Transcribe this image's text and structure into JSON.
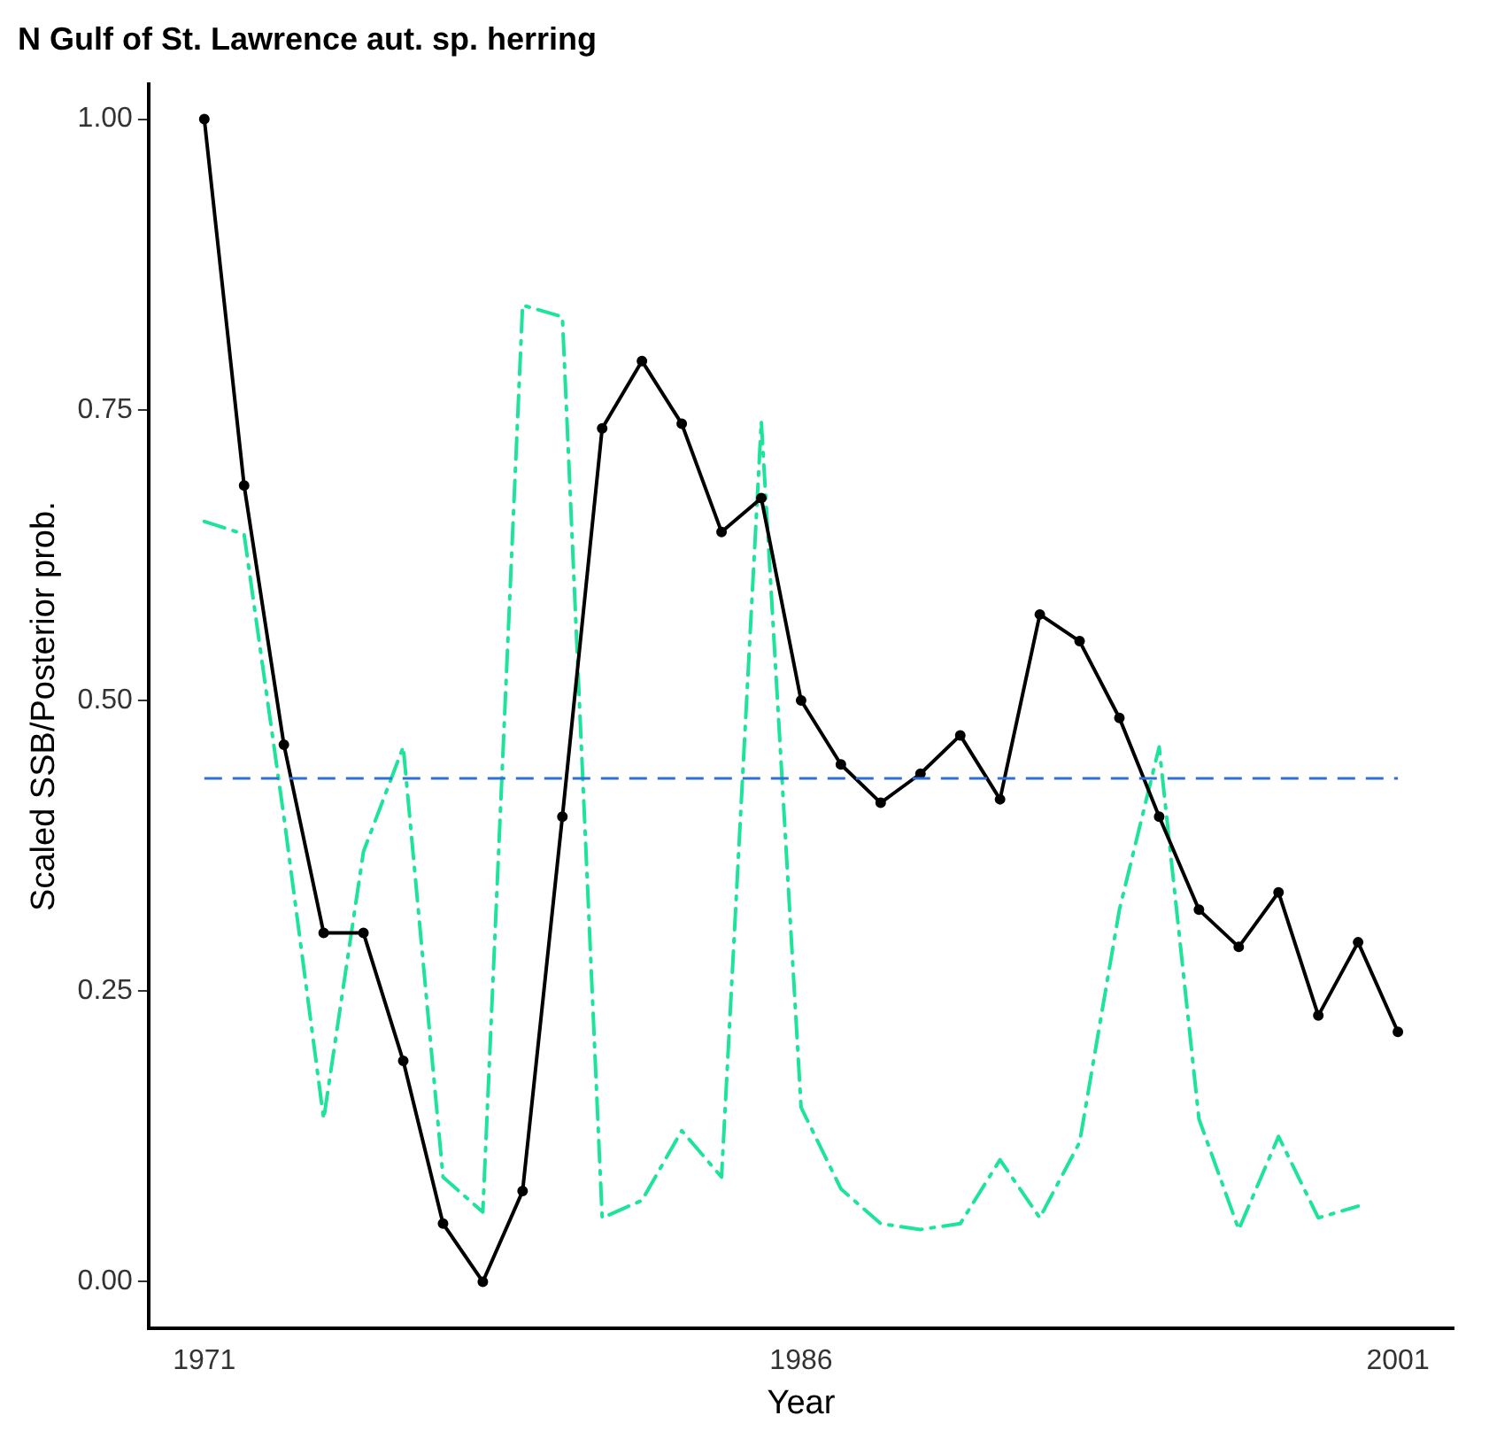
{
  "chart_data": {
    "type": "line",
    "title": "N Gulf of St. Lawrence aut. sp. herring",
    "xlabel": "Year",
    "ylabel": "Scaled SSB/Posterior prob.",
    "xlim": [
      1969.6,
      2002.4
    ],
    "xticks": [
      1971,
      1986,
      2001
    ],
    "ylim": [
      -0.04,
      1.03
    ],
    "yticks": [
      {
        "value": 0,
        "label": "0.00"
      },
      {
        "value": 0.25,
        "label": "0.25"
      },
      {
        "value": 0.5,
        "label": "0.50"
      },
      {
        "value": 0.75,
        "label": "0.75"
      },
      {
        "value": 1,
        "label": "1.00"
      }
    ],
    "grid": false,
    "legend": false,
    "series": [
      {
        "color": "#000000",
        "marker": "circle",
        "line_style": "solid",
        "x": [
          1971,
          1972,
          1973,
          1974,
          1975,
          1976,
          1977,
          1978,
          1979,
          1980,
          1981,
          1982,
          1983,
          1984,
          1985,
          1986,
          1987,
          1988,
          1989,
          1990,
          1991,
          1992,
          1993,
          1994,
          1995,
          1996,
          1997,
          1998,
          1999,
          2000,
          2001
        ],
        "values": [
          1.0,
          0.685,
          0.462,
          0.3,
          0.3,
          0.19,
          0.05,
          0.0,
          0.078,
          0.4,
          0.734,
          0.792,
          0.738,
          0.645,
          0.674,
          0.5,
          0.445,
          0.412,
          0.437,
          0.47,
          0.415,
          0.574,
          0.551,
          0.485,
          0.4,
          0.32,
          0.288,
          0.335,
          0.229,
          0.292,
          0.215
        ]
      },
      {
        "color": "#1ee39a",
        "marker": "none",
        "line_style": "dashdot",
        "x": [
          1971,
          1972,
          1973,
          1974,
          1975,
          1976,
          1977,
          1978,
          1979,
          1980,
          1981,
          1982,
          1983,
          1984,
          1985,
          1986,
          1987,
          1988,
          1989,
          1990,
          1991,
          1992,
          1993,
          1994,
          1995,
          1996,
          1997,
          1998,
          1999,
          2000
        ],
        "values": [
          0.654,
          0.643,
          0.4,
          0.14,
          0.37,
          0.46,
          0.09,
          0.06,
          0.84,
          0.83,
          0.055,
          0.07,
          0.13,
          0.09,
          0.74,
          0.15,
          0.08,
          0.05,
          0.045,
          0.05,
          0.105,
          0.055,
          0.12,
          0.32,
          0.46,
          0.14,
          0.045,
          0.125,
          0.055,
          0.065
        ]
      }
    ],
    "ref_lines": [
      {
        "axis": "y",
        "value": 0.433,
        "color": "#2e6fd9",
        "line_style": "dashed"
      }
    ]
  }
}
